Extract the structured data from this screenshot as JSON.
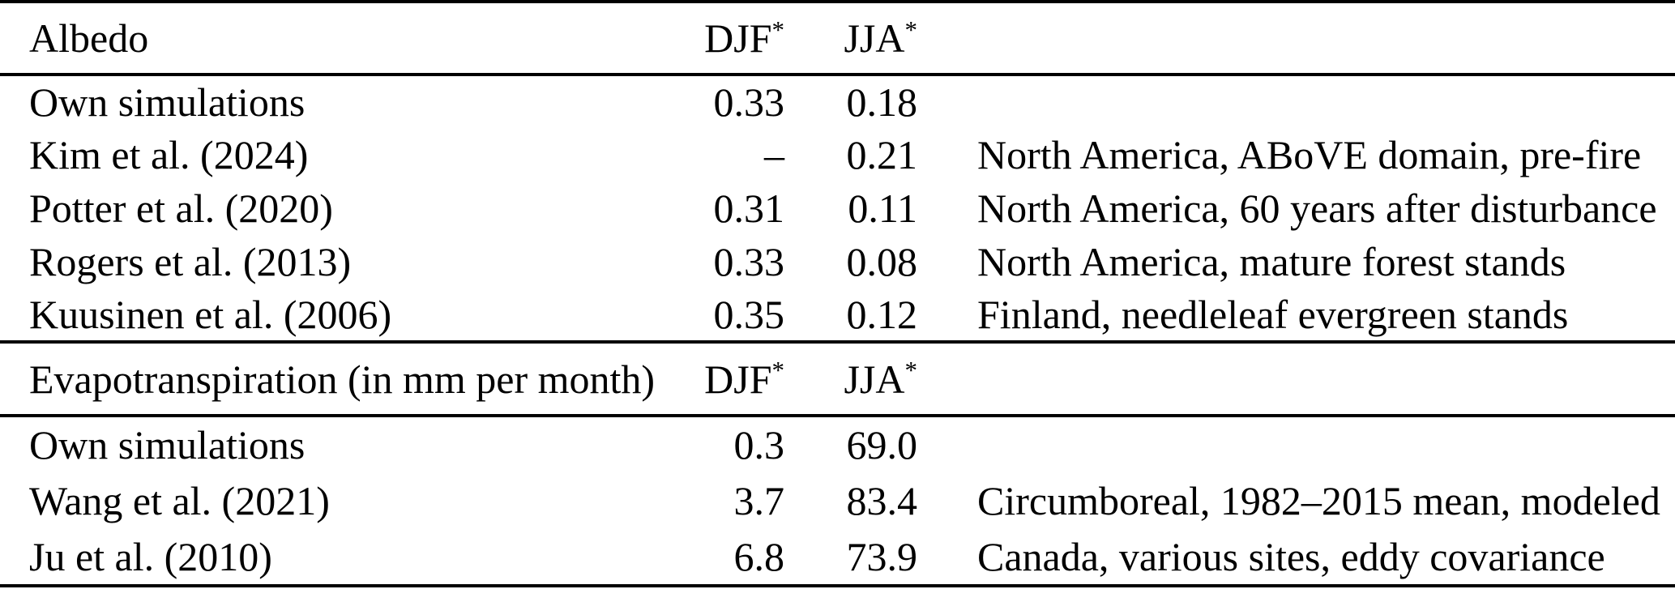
{
  "table": {
    "colors": {
      "text": "#000000",
      "background": "#ffffff",
      "rule": "#000000"
    },
    "sections": [
      {
        "title": "Albedo",
        "col_headers": {
          "djf": "DJF",
          "jja": "JJA",
          "sup": "*"
        },
        "rows": [
          {
            "source": "Own simulations",
            "djf": "0.33",
            "jja": "0.18",
            "note": ""
          },
          {
            "source": "Kim et al. (2024)",
            "djf": "–",
            "jja": "0.21",
            "note": "North America, ABoVE domain, pre-fire"
          },
          {
            "source": "Potter et al. (2020)",
            "djf": "0.31",
            "jja": "0.11",
            "note": "North America, 60 years after disturbance"
          },
          {
            "source": "Rogers et al. (2013)",
            "djf": "0.33",
            "jja": "0.08",
            "note": "North America, mature forest stands"
          },
          {
            "source": "Kuusinen et al. (2006)",
            "djf": "0.35",
            "jja": "0.12",
            "note": "Finland, needleleaf evergreen stands"
          }
        ]
      },
      {
        "title": "Evapotranspiration (in mm per month)",
        "col_headers": {
          "djf": "DJF",
          "jja": "JJA",
          "sup": "*"
        },
        "rows": [
          {
            "source": "Own simulations",
            "djf": "0.3",
            "jja": "69.0",
            "note": ""
          },
          {
            "source": "Wang et al. (2021)",
            "djf": "3.7",
            "jja": "83.4",
            "note": "Circumboreal, 1982–2015 mean, modeled"
          },
          {
            "source": "Ju et al. (2010)",
            "djf": "6.8",
            "jja": "73.9",
            "note": "Canada, various sites, eddy covariance"
          }
        ]
      }
    ]
  }
}
